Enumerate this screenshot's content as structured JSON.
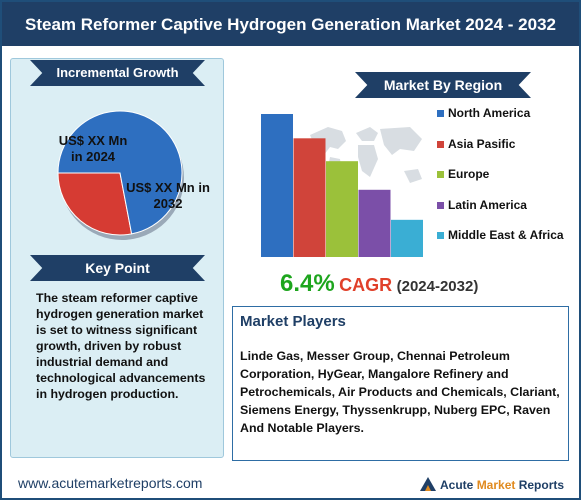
{
  "header": {
    "title": "Steam Reformer Captive Hydrogen Generation Market 2024 - 2032"
  },
  "incremental": {
    "heading": "Incremental Growth",
    "label_2024": "US$ XX Mn in 2024",
    "label_2032": "US$ XX Mn in 2032"
  },
  "keypoint": {
    "heading": "Key Point",
    "text": "The steam reformer captive hydrogen generation market is set to witness significant growth, driven by robust industrial demand and technological advancements in hydrogen production."
  },
  "region": {
    "heading": "Market By Region"
  },
  "cagr": {
    "value": "6.4%",
    "word": "CAGR",
    "years": "(2024-2032)"
  },
  "players": {
    "heading": "Market Players",
    "text": "Linde Gas, Messer Group, Chennai Petroleum Corporation, HyGear, Mangalore Refinery and Petrochemicals, Air Products and Chemicals, Clariant, Siemens Energy, Thyssenkrupp, Nuberg EPC, Raven And Notable Players."
  },
  "footer": {
    "url": "www.acutemarketreports.com",
    "logo_part1": "Acute ",
    "logo_part2": "Market",
    "logo_part3": " Reports"
  },
  "chart_data": [
    {
      "type": "pie",
      "labels": [
        "US$ XX Mn in 2024",
        "US$ XX Mn in 2032"
      ],
      "values": [
        28,
        72
      ],
      "colors": [
        "#d63b33",
        "#2e6fc0"
      ]
    },
    {
      "type": "bar",
      "categories": [
        "North America",
        "Asia Pasific",
        "Europe",
        "Latin America",
        "Middle East & Africa"
      ],
      "values": [
        100,
        83,
        67,
        47,
        26
      ],
      "colors": [
        "#2e6fc0",
        "#d0443a",
        "#9bc13a",
        "#7b4fa8",
        "#3aaed4"
      ],
      "legend": "right"
    }
  ]
}
